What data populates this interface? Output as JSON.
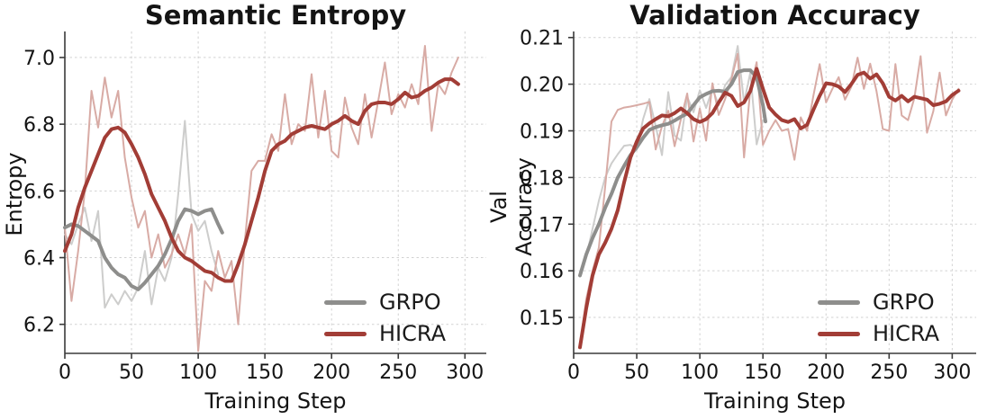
{
  "figure": {
    "background": "#ffffff",
    "grid_color": "#d2d2d2",
    "spine_color": "#3a3a3a",
    "text_color": "#141414"
  },
  "chart_data": [
    {
      "type": "line",
      "title": "Semantic Entropy",
      "xlabel": "Training Step",
      "ylabel": "Entropy",
      "xlim": [
        0,
        316
      ],
      "ylim": [
        6.113,
        7.078
      ],
      "grid": true,
      "legend_position": "lower right",
      "xticks": [
        {
          "v": 0,
          "label": "0"
        },
        {
          "v": 50,
          "label": "50"
        },
        {
          "v": 100,
          "label": "100"
        },
        {
          "v": 150,
          "label": "150"
        },
        {
          "v": 200,
          "label": "200"
        },
        {
          "v": 250,
          "label": "250"
        },
        {
          "v": 300,
          "label": "300"
        }
      ],
      "yticks": [
        {
          "v": 6.2,
          "label": "6.2"
        },
        {
          "v": 6.4,
          "label": "6.4"
        },
        {
          "v": 6.6,
          "label": "6.6"
        },
        {
          "v": 6.8,
          "label": "6.8"
        },
        {
          "v": 7.0,
          "label": "7.0"
        }
      ],
      "legend": [
        {
          "label": "GRPO",
          "color": "#8e8e8c"
        },
        {
          "label": "HICRA",
          "color": "#a23d36"
        }
      ],
      "series": [
        {
          "name": "GRPO_raw",
          "color": "#cdcdcc",
          "width": 2,
          "x": [
            0,
            5,
            10,
            15,
            20,
            25,
            30,
            35,
            40,
            45,
            50,
            55,
            60,
            65,
            70,
            75,
            80,
            85,
            90,
            95,
            100,
            105,
            110,
            115
          ],
          "y": [
            6.47,
            6.44,
            6.5,
            6.55,
            6.45,
            6.54,
            6.25,
            6.29,
            6.26,
            6.3,
            6.27,
            6.31,
            6.42,
            6.26,
            6.37,
            6.33,
            6.4,
            6.59,
            6.81,
            6.53,
            6.48,
            6.51,
            6.42,
            6.35
          ]
        },
        {
          "name": "HICRA_raw",
          "color": "#d8aba5",
          "width": 2,
          "x": [
            0,
            5,
            10,
            15,
            20,
            25,
            30,
            35,
            40,
            45,
            50,
            55,
            60,
            65,
            70,
            75,
            80,
            85,
            90,
            95,
            100,
            105,
            110,
            115,
            120,
            125,
            130,
            135,
            140,
            145,
            150,
            155,
            160,
            165,
            170,
            175,
            180,
            185,
            190,
            195,
            200,
            205,
            210,
            215,
            220,
            225,
            230,
            235,
            240,
            245,
            250,
            255,
            260,
            265,
            270,
            275,
            280,
            285,
            290,
            295
          ],
          "y": [
            6.49,
            6.27,
            6.42,
            6.6,
            6.9,
            6.79,
            6.94,
            6.82,
            6.9,
            6.7,
            6.58,
            6.49,
            6.54,
            6.4,
            6.47,
            6.37,
            6.41,
            6.47,
            6.41,
            6.5,
            6.12,
            6.33,
            6.3,
            6.42,
            6.34,
            6.39,
            6.2,
            6.45,
            6.66,
            6.69,
            6.69,
            6.77,
            6.72,
            6.89,
            6.74,
            6.8,
            6.78,
            6.95,
            6.76,
            6.9,
            6.72,
            6.7,
            6.88,
            6.79,
            6.74,
            6.89,
            6.76,
            6.87,
            6.985,
            6.83,
            6.89,
            6.85,
            6.92,
            6.86,
            7.035,
            6.78,
            6.92,
            6.89,
            6.955,
            7.0
          ]
        },
        {
          "name": "GRPO",
          "color": "#8e8e8c",
          "width": 4,
          "x": [
            0,
            5,
            10,
            15,
            20,
            25,
            30,
            35,
            40,
            45,
            50,
            55,
            60,
            65,
            70,
            75,
            80,
            85,
            90,
            95,
            100,
            105,
            110,
            115,
            118
          ],
          "y": [
            6.49,
            6.5,
            6.495,
            6.48,
            6.465,
            6.45,
            6.4,
            6.37,
            6.35,
            6.34,
            6.315,
            6.305,
            6.325,
            6.35,
            6.375,
            6.41,
            6.455,
            6.51,
            6.545,
            6.54,
            6.53,
            6.54,
            6.545,
            6.5,
            6.475
          ]
        },
        {
          "name": "HICRA",
          "color": "#a23d36",
          "width": 4,
          "x": [
            0,
            5,
            10,
            15,
            20,
            25,
            30,
            35,
            40,
            45,
            50,
            55,
            60,
            65,
            70,
            75,
            80,
            85,
            90,
            95,
            100,
            105,
            110,
            115,
            120,
            125,
            130,
            135,
            140,
            145,
            150,
            155,
            160,
            165,
            170,
            175,
            180,
            185,
            190,
            195,
            200,
            205,
            210,
            215,
            220,
            225,
            230,
            235,
            240,
            245,
            250,
            255,
            260,
            265,
            270,
            275,
            280,
            285,
            290,
            295
          ],
          "y": [
            6.42,
            6.47,
            6.55,
            6.61,
            6.66,
            6.71,
            6.76,
            6.785,
            6.79,
            6.775,
            6.74,
            6.7,
            6.65,
            6.59,
            6.55,
            6.51,
            6.46,
            6.42,
            6.4,
            6.39,
            6.375,
            6.36,
            6.355,
            6.34,
            6.33,
            6.33,
            6.38,
            6.44,
            6.51,
            6.58,
            6.66,
            6.72,
            6.74,
            6.75,
            6.77,
            6.78,
            6.79,
            6.795,
            6.79,
            6.785,
            6.8,
            6.81,
            6.825,
            6.81,
            6.8,
            6.84,
            6.86,
            6.865,
            6.865,
            6.86,
            6.875,
            6.895,
            6.88,
            6.885,
            6.9,
            6.91,
            6.925,
            6.935,
            6.935,
            6.92
          ]
        }
      ]
    },
    {
      "type": "line",
      "title": "Validation Accuracy",
      "xlabel": "Training Step",
      "ylabel": "Val Accuracy",
      "xlim": [
        0,
        319
      ],
      "ylim": [
        0.1423,
        0.2113
      ],
      "grid": true,
      "legend_position": "lower right",
      "xticks": [
        {
          "v": 0,
          "label": "0"
        },
        {
          "v": 50,
          "label": "50"
        },
        {
          "v": 100,
          "label": "100"
        },
        {
          "v": 150,
          "label": "150"
        },
        {
          "v": 200,
          "label": "200"
        },
        {
          "v": 250,
          "label": "250"
        },
        {
          "v": 300,
          "label": "300"
        }
      ],
      "yticks": [
        {
          "v": 0.15,
          "label": "0.15"
        },
        {
          "v": 0.16,
          "label": "0.16"
        },
        {
          "v": 0.17,
          "label": "0.17"
        },
        {
          "v": 0.18,
          "label": "0.18"
        },
        {
          "v": 0.19,
          "label": "0.19"
        },
        {
          "v": 0.2,
          "label": "0.20"
        },
        {
          "v": 0.21,
          "label": "0.21"
        }
      ],
      "legend": [
        {
          "label": "GRPO",
          "color": "#8e8e8c"
        },
        {
          "label": "HICRA",
          "color": "#a23d36"
        }
      ],
      "series": [
        {
          "name": "GRPO_raw",
          "color": "#cdcdcc",
          "width": 2,
          "x": [
            5,
            10,
            15,
            20,
            25,
            30,
            35,
            40,
            45,
            50,
            55,
            60,
            65,
            70,
            75,
            80,
            85,
            90,
            95,
            100,
            105,
            110,
            115,
            120,
            125,
            130,
            135,
            140,
            145,
            150
          ],
          "y": [
            0.159,
            0.163,
            0.169,
            0.175,
            0.18,
            0.183,
            0.185,
            0.1868,
            0.187,
            0.186,
            0.1925,
            0.1968,
            0.191,
            0.1848,
            0.1983,
            0.189,
            0.1879,
            0.1973,
            0.194,
            0.1987,
            0.1949,
            0.199,
            0.1955,
            0.1998,
            0.2015,
            0.2082,
            0.1961,
            0.2025,
            0.1871,
            0.1923
          ]
        },
        {
          "name": "HICRA_raw",
          "color": "#d8aba5",
          "width": 2,
          "x": [
            5,
            10,
            15,
            20,
            25,
            30,
            35,
            40,
            45,
            50,
            55,
            60,
            65,
            70,
            75,
            80,
            85,
            90,
            95,
            100,
            105,
            110,
            115,
            120,
            125,
            130,
            135,
            140,
            145,
            150,
            155,
            160,
            165,
            170,
            175,
            180,
            185,
            190,
            195,
            200,
            205,
            210,
            215,
            220,
            225,
            230,
            235,
            240,
            245,
            250,
            255,
            260,
            265,
            270,
            275,
            280,
            285,
            290,
            295,
            300,
            305
          ],
          "y": [
            0.1436,
            0.154,
            0.16,
            0.165,
            0.178,
            0.192,
            0.1945,
            0.195,
            0.1952,
            0.1955,
            0.1958,
            0.1962,
            0.186,
            0.191,
            0.1943,
            0.1867,
            0.1925,
            0.198,
            0.1877,
            0.1948,
            0.1879,
            0.2002,
            0.1934,
            0.1968,
            0.2011,
            0.2065,
            0.1843,
            0.199,
            0.2047,
            0.187,
            0.19,
            0.1923,
            0.19,
            0.1904,
            0.1838,
            0.1929,
            0.19,
            0.1975,
            0.2043,
            0.1961,
            0.199,
            0.2015,
            0.1967,
            0.1994,
            0.2057,
            0.199,
            0.2044,
            0.1985,
            0.1904,
            0.19,
            0.2043,
            0.1933,
            0.1923,
            0.197,
            0.206,
            0.1896,
            0.1942,
            0.2025,
            0.1933,
            0.1967,
            0.199
          ]
        },
        {
          "name": "GRPO",
          "color": "#8e8e8c",
          "width": 4,
          "x": [
            5,
            10,
            15,
            20,
            25,
            30,
            35,
            40,
            45,
            50,
            55,
            60,
            65,
            70,
            75,
            80,
            85,
            90,
            95,
            100,
            105,
            110,
            115,
            120,
            125,
            130,
            135,
            140,
            145,
            150,
            152
          ],
          "y": [
            0.159,
            0.1635,
            0.167,
            0.17,
            0.1735,
            0.1765,
            0.18,
            0.1825,
            0.1848,
            0.1865,
            0.1885,
            0.1902,
            0.1908,
            0.1912,
            0.1915,
            0.1922,
            0.193,
            0.1937,
            0.1955,
            0.1972,
            0.1979,
            0.1985,
            0.1986,
            0.1984,
            0.2,
            0.2026,
            0.203,
            0.203,
            0.2015,
            0.1955,
            0.192
          ]
        },
        {
          "name": "HICRA",
          "color": "#a23d36",
          "width": 4,
          "x": [
            5,
            10,
            15,
            20,
            25,
            30,
            35,
            40,
            45,
            50,
            55,
            60,
            65,
            70,
            75,
            80,
            85,
            90,
            95,
            100,
            105,
            110,
            115,
            120,
            125,
            130,
            135,
            140,
            145,
            150,
            155,
            160,
            165,
            170,
            175,
            180,
            185,
            190,
            195,
            200,
            205,
            210,
            215,
            220,
            225,
            230,
            235,
            240,
            245,
            250,
            255,
            260,
            265,
            270,
            275,
            280,
            285,
            290,
            295,
            300,
            305
          ],
          "y": [
            0.1436,
            0.152,
            0.159,
            0.1635,
            0.166,
            0.169,
            0.173,
            0.179,
            0.1843,
            0.1877,
            0.1905,
            0.1916,
            0.1925,
            0.1933,
            0.1931,
            0.1938,
            0.1948,
            0.1938,
            0.1925,
            0.1919,
            0.1925,
            0.1938,
            0.1961,
            0.1982,
            0.1975,
            0.1953,
            0.1961,
            0.1985,
            0.2033,
            0.199,
            0.195,
            0.1935,
            0.1923,
            0.1919,
            0.1925,
            0.1905,
            0.1913,
            0.1945,
            0.1975,
            0.2002,
            0.2,
            0.1995,
            0.1983,
            0.2,
            0.202,
            0.2025,
            0.2012,
            0.2021,
            0.2002,
            0.1973,
            0.1965,
            0.1975,
            0.1963,
            0.1973,
            0.197,
            0.1967,
            0.1955,
            0.1958,
            0.1963,
            0.1977,
            0.1986
          ]
        }
      ]
    }
  ]
}
